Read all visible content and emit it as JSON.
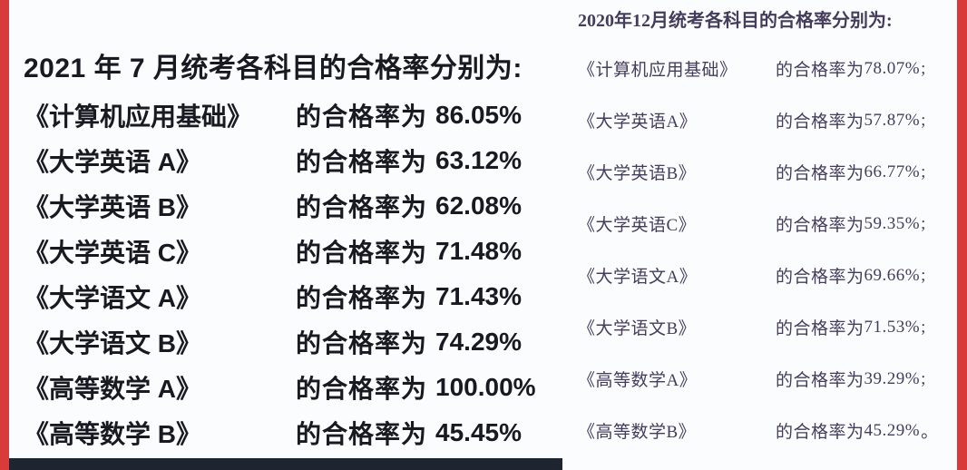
{
  "page": {
    "description": "Scanned document comparing national unified exam pass rates by subject"
  },
  "decorations": {
    "left_edge_bar_color": "#d93b3b",
    "right_edge_bar_color": "#d93b3b",
    "bottom_bar_color": "#1e2531",
    "background": "#fbfcfe"
  },
  "left_panel": {
    "title": "2021 年 7 月统考各科目的合格率分别为:",
    "text_color": "#191921",
    "rows": [
      {
        "subject": "《计算机应用基础》",
        "label": "的合格率为",
        "value": "86.05%"
      },
      {
        "subject": "《大学英语 A》",
        "label": "的合格率为",
        "value": "63.12%"
      },
      {
        "subject": "《大学英语 B》",
        "label": "的合格率为",
        "value": "62.08%"
      },
      {
        "subject": "《大学英语 C》",
        "label": "的合格率为",
        "value": "71.48%"
      },
      {
        "subject": "《大学语文 A》",
        "label": "的合格率为",
        "value": "71.43%"
      },
      {
        "subject": "《大学语文 B》",
        "label": "的合格率为",
        "value": "74.29%"
      },
      {
        "subject": "《高等数学 A》",
        "label": "的合格率为",
        "value": "100.00%"
      },
      {
        "subject": "《高等数学 B》",
        "label": "的合格率为",
        "value": "45.45%"
      }
    ]
  },
  "right_panel": {
    "title": "2020年12月统考各科目的合格率分别为:",
    "text_color": "#453c5c",
    "rows": [
      {
        "subject": "《计算机应用基础》",
        "label": "的合格率为",
        "value": "78.07%",
        "suffix": ";"
      },
      {
        "subject": "《大学英语A》",
        "label": "的合格率为",
        "value": "57.87%",
        "suffix": ";"
      },
      {
        "subject": "《大学英语B》",
        "label": "的合格率为",
        "value": "66.77%",
        "suffix": ";"
      },
      {
        "subject": "《大学英语C》",
        "label": "的合格率为",
        "value": "59.35%",
        "suffix": ";"
      },
      {
        "subject": "《大学语文A》",
        "label": "的合格率为",
        "value": "69.66%",
        "suffix": ";"
      },
      {
        "subject": "《大学语文B》",
        "label": "的合格率为",
        "value": "71.53%",
        "suffix": ";"
      },
      {
        "subject": "《高等数学A》",
        "label": "的合格率为",
        "value": "39.29%",
        "suffix": ";"
      },
      {
        "subject": "《高等数学B》",
        "label": "的合格率为",
        "value": "45.29%",
        "suffix": "。"
      }
    ]
  }
}
